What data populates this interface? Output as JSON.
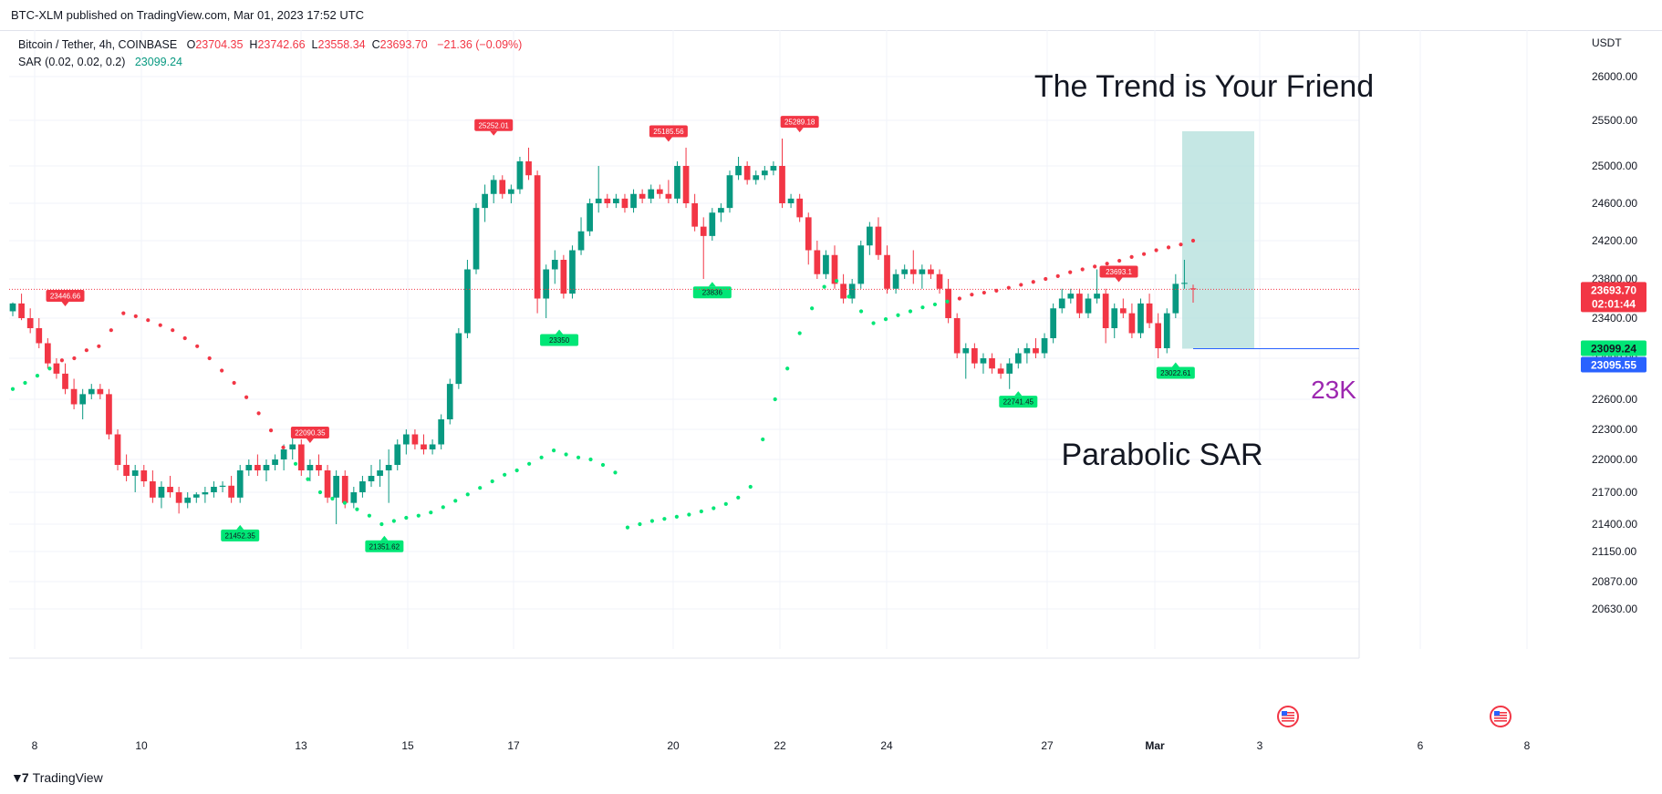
{
  "header": {
    "published": "BTC-XLM published on TradingView.com, Mar 01, 2023 17:52 UTC"
  },
  "legend": {
    "symbol": "Bitcoin / Tether, 4h, COINBASE",
    "o_label": "O",
    "o": "23704.35",
    "h_label": "H",
    "h": "23742.66",
    "l_label": "L",
    "l": "23558.34",
    "c_label": "C",
    "c": "23693.70",
    "change": "−21.36 (−0.09%)",
    "sar_label": "SAR (0.02, 0.02, 0.2)",
    "sar_value": "23099.24"
  },
  "currency": "USDT",
  "footer": {
    "brand": "TradingView"
  },
  "colors": {
    "up": "#089981",
    "down": "#f23645",
    "sar_up": "#00e676",
    "sar_down": "#f23645",
    "zone": "#b2dfdb",
    "level": "#2962ff",
    "label23k": "#9c27b0"
  },
  "chart_data": {
    "type": "candlestick",
    "symbol": "Bitcoin / Tether",
    "interval": "4h",
    "ylim": [
      20450,
      26300
    ],
    "y_ticks": [
      26000,
      25500,
      25000,
      24600,
      24200,
      23800,
      23400,
      23000,
      22600,
      22300,
      22000,
      21700,
      21400,
      21150,
      20870,
      20630
    ],
    "y_tick_labels": [
      "26000.00",
      "25500.00",
      "25000.00",
      "24600.00",
      "24200.00",
      "23800.00",
      "23400.00",
      "23000.00",
      "22600.00",
      "22300.00",
      "22000.00",
      "21700.00",
      "21400.00",
      "21150.00",
      "20870.00",
      "20630.00"
    ],
    "x_ticks": [
      {
        "label": "8",
        "day": 8
      },
      {
        "label": "10",
        "day": 10
      },
      {
        "label": "13",
        "day": 13
      },
      {
        "label": "15",
        "day": 15
      },
      {
        "label": "17",
        "day": 17
      },
      {
        "label": "20",
        "day": 20
      },
      {
        "label": "22",
        "day": 22
      },
      {
        "label": "24",
        "day": 24
      },
      {
        "label": "27",
        "day": 27
      },
      {
        "label": "Mar",
        "day": 29
      },
      {
        "label": "3",
        "day": 31
      },
      {
        "label": "6",
        "day": 34
      },
      {
        "label": "8",
        "day": 36
      }
    ],
    "candles": [
      [
        23470,
        23560,
        23420,
        23550
      ],
      [
        23550,
        23650,
        23380,
        23400
      ],
      [
        23400,
        23500,
        23250,
        23300
      ],
      [
        23300,
        23400,
        23100,
        23150
      ],
      [
        23150,
        23200,
        22900,
        22950
      ],
      [
        22950,
        23000,
        22800,
        22850
      ],
      [
        22850,
        22950,
        22650,
        22700
      ],
      [
        22700,
        22800,
        22500,
        22550
      ],
      [
        22550,
        22700,
        22400,
        22650
      ],
      [
        22650,
        22750,
        22600,
        22700
      ],
      [
        22700,
        22750,
        22600,
        22650
      ],
      [
        22650,
        22700,
        22200,
        22250
      ],
      [
        22250,
        22300,
        21900,
        21950
      ],
      [
        21950,
        22050,
        21800,
        21850
      ],
      [
        21850,
        21950,
        21700,
        21900
      ],
      [
        21900,
        21950,
        21750,
        21800
      ],
      [
        21800,
        21900,
        21600,
        21650
      ],
      [
        21650,
        21800,
        21550,
        21750
      ],
      [
        21750,
        21850,
        21650,
        21700
      ],
      [
        21700,
        21750,
        21500,
        21600
      ],
      [
        21600,
        21700,
        21550,
        21650
      ],
      [
        21650,
        21700,
        21600,
        21680
      ],
      [
        21680,
        21750,
        21600,
        21700
      ],
      [
        21700,
        21800,
        21650,
        21750
      ],
      [
        21750,
        21800,
        21700,
        21760
      ],
      [
        21760,
        21850,
        21600,
        21650
      ],
      [
        21650,
        21950,
        21600,
        21900
      ],
      [
        21900,
        22000,
        21850,
        21950
      ],
      [
        21950,
        22050,
        21850,
        21900
      ],
      [
        21900,
        22000,
        21800,
        21950
      ],
      [
        21950,
        22050,
        21900,
        22000
      ],
      [
        22000,
        22150,
        21900,
        22100
      ],
      [
        22100,
        22250,
        22000,
        22150
      ],
      [
        22150,
        22200,
        21850,
        21900
      ],
      [
        21900,
        22000,
        21800,
        21950
      ],
      [
        21950,
        22050,
        21850,
        21900
      ],
      [
        21900,
        21950,
        21600,
        21650
      ],
      [
        21650,
        21900,
        21400,
        21850
      ],
      [
        21850,
        21900,
        21550,
        21600
      ],
      [
        21600,
        21750,
        21550,
        21700
      ],
      [
        21700,
        21850,
        21650,
        21800
      ],
      [
        21800,
        21950,
        21750,
        21850
      ],
      [
        21850,
        22000,
        21750,
        21900
      ],
      [
        21900,
        22100,
        21600,
        21950
      ],
      [
        21950,
        22200,
        21900,
        22150
      ],
      [
        22150,
        22300,
        22050,
        22250
      ],
      [
        22250,
        22300,
        22100,
        22150
      ],
      [
        22150,
        22250,
        22050,
        22100
      ],
      [
        22100,
        22200,
        22050,
        22150
      ],
      [
        22150,
        22450,
        22100,
        22400
      ],
      [
        22400,
        22800,
        22350,
        22750
      ],
      [
        22750,
        23300,
        22700,
        23250
      ],
      [
        23250,
        24000,
        23200,
        23900
      ],
      [
        23900,
        24600,
        23850,
        24550
      ],
      [
        24550,
        24800,
        24400,
        24700
      ],
      [
        24700,
        24900,
        24600,
        24850
      ],
      [
        24850,
        24900,
        24650,
        24700
      ],
      [
        24700,
        24800,
        24600,
        24750
      ],
      [
        24750,
        25100,
        24700,
        25050
      ],
      [
        25050,
        25200,
        24850,
        24900
      ],
      [
        24900,
        24950,
        23450,
        23600
      ],
      [
        23600,
        23950,
        23400,
        23900
      ],
      [
        23900,
        24100,
        23750,
        24000
      ],
      [
        24000,
        24050,
        23600,
        23650
      ],
      [
        23650,
        24150,
        23600,
        24100
      ],
      [
        24100,
        24450,
        24050,
        24300
      ],
      [
        24300,
        24650,
        24250,
        24600
      ],
      [
        24600,
        25000,
        24500,
        24650
      ],
      [
        24650,
        24700,
        24550,
        24600
      ],
      [
        24600,
        24700,
        24550,
        24650
      ],
      [
        24650,
        24700,
        24500,
        24550
      ],
      [
        24550,
        24750,
        24500,
        24700
      ],
      [
        24700,
        24750,
        24600,
        24650
      ],
      [
        24650,
        24800,
        24600,
        24750
      ],
      [
        24750,
        24800,
        24650,
        24700
      ],
      [
        24700,
        24850,
        24600,
        24650
      ],
      [
        24650,
        25050,
        24600,
        25000
      ],
      [
        25000,
        25200,
        24550,
        24600
      ],
      [
        24600,
        24700,
        24300,
        24350
      ],
      [
        24350,
        24450,
        23800,
        24250
      ],
      [
        24250,
        24550,
        24200,
        24500
      ],
      [
        24500,
        24600,
        24400,
        24550
      ],
      [
        24550,
        24950,
        24500,
        24900
      ],
      [
        24900,
        25100,
        24850,
        25000
      ],
      [
        25000,
        25050,
        24800,
        24850
      ],
      [
        24850,
        24950,
        24800,
        24900
      ],
      [
        24900,
        25000,
        24850,
        24950
      ],
      [
        24950,
        25050,
        24900,
        25000
      ],
      [
        25000,
        25300,
        24550,
        24600
      ],
      [
        24600,
        24700,
        24550,
        24650
      ],
      [
        24650,
        24700,
        24400,
        24450
      ],
      [
        24450,
        24500,
        23950,
        24100
      ],
      [
        24100,
        24200,
        23800,
        23850
      ],
      [
        23850,
        24100,
        23800,
        24050
      ],
      [
        24050,
        24150,
        23700,
        23750
      ],
      [
        23750,
        23850,
        23550,
        23600
      ],
      [
        23600,
        23800,
        23550,
        23750
      ],
      [
        23750,
        24200,
        23700,
        24150
      ],
      [
        24150,
        24400,
        24050,
        24350
      ],
      [
        24350,
        24450,
        24000,
        24050
      ],
      [
        24050,
        24150,
        23650,
        23700
      ],
      [
        23700,
        23900,
        23650,
        23850
      ],
      [
        23850,
        23950,
        23800,
        23900
      ],
      [
        23900,
        24100,
        23750,
        23850
      ],
      [
        23850,
        23950,
        23700,
        23900
      ],
      [
        23900,
        23950,
        23800,
        23850
      ],
      [
        23850,
        23900,
        23650,
        23700
      ],
      [
        23700,
        23800,
        23350,
        23400
      ],
      [
        23400,
        23450,
        23000,
        23050
      ],
      [
        23050,
        23150,
        22800,
        23100
      ],
      [
        23100,
        23150,
        22900,
        22950
      ],
      [
        22950,
        23050,
        22850,
        23000
      ],
      [
        23000,
        23050,
        22850,
        22900
      ],
      [
        22900,
        22950,
        22800,
        22850
      ],
      [
        22850,
        23000,
        22700,
        22950
      ],
      [
        22950,
        23100,
        22900,
        23050
      ],
      [
        23050,
        23150,
        22950,
        23100
      ],
      [
        23100,
        23200,
        23000,
        23050
      ],
      [
        23050,
        23250,
        23000,
        23200
      ],
      [
        23200,
        23550,
        23150,
        23500
      ],
      [
        23500,
        23700,
        23450,
        23600
      ],
      [
        23600,
        23700,
        23550,
        23650
      ],
      [
        23650,
        23700,
        23400,
        23450
      ],
      [
        23450,
        23650,
        23400,
        23600
      ],
      [
        23600,
        23900,
        23550,
        23650
      ],
      [
        23650,
        23700,
        23150,
        23300
      ],
      [
        23300,
        23550,
        23200,
        23500
      ],
      [
        23500,
        23600,
        23400,
        23450
      ],
      [
        23450,
        23550,
        23200,
        23250
      ],
      [
        23250,
        23600,
        23200,
        23550
      ],
      [
        23550,
        23650,
        23300,
        23350
      ],
      [
        23350,
        23450,
        23000,
        23100
      ],
      [
        23100,
        23500,
        23050,
        23450
      ],
      [
        23450,
        23850,
        23400,
        23750
      ],
      [
        23750,
        24000,
        23700,
        23760
      ],
      [
        23704,
        23742,
        23558,
        23694
      ]
    ],
    "sar_dots": [
      [
        0,
        22700
      ],
      [
        2,
        22760
      ],
      [
        4,
        22830
      ],
      [
        6,
        22900
      ],
      [
        8,
        22980
      ],
      [
        10,
        23000
      ],
      [
        12,
        23080
      ],
      [
        14,
        23120
      ],
      [
        16,
        23280
      ],
      [
        18,
        23450
      ],
      [
        20,
        23420
      ],
      [
        22,
        23380
      ],
      [
        24,
        23330
      ],
      [
        26,
        23280
      ],
      [
        28,
        23200
      ],
      [
        30,
        23120
      ],
      [
        32,
        23000
      ],
      [
        34,
        22880
      ],
      [
        36,
        22760
      ],
      [
        38,
        22620
      ],
      [
        40,
        22460
      ],
      [
        42,
        22290
      ],
      [
        44,
        22120
      ],
      [
        46,
        21960
      ],
      [
        48,
        21820
      ],
      [
        50,
        21700
      ],
      [
        52,
        21640
      ],
      [
        54,
        21600
      ],
      [
        56,
        21540
      ],
      [
        58,
        21480
      ],
      [
        60,
        21400
      ],
      [
        62,
        21430
      ],
      [
        64,
        21460
      ],
      [
        66,
        21480
      ],
      [
        68,
        21510
      ],
      [
        70,
        21560
      ],
      [
        72,
        21620
      ],
      [
        74,
        21680
      ],
      [
        76,
        21740
      ],
      [
        78,
        21800
      ],
      [
        80,
        21860
      ],
      [
        82,
        21900
      ],
      [
        84,
        21960
      ],
      [
        86,
        22020
      ],
      [
        88,
        22090
      ],
      [
        90,
        22050
      ],
      [
        92,
        22020
      ],
      [
        94,
        22000
      ],
      [
        96,
        21950
      ],
      [
        98,
        21880
      ],
      [
        100,
        21370
      ],
      [
        102,
        21400
      ],
      [
        104,
        21430
      ],
      [
        106,
        21450
      ],
      [
        108,
        21470
      ],
      [
        110,
        21490
      ],
      [
        112,
        21520
      ],
      [
        114,
        21550
      ],
      [
        116,
        21590
      ],
      [
        118,
        21650
      ],
      [
        120,
        21750
      ],
      [
        122,
        22200
      ],
      [
        124,
        22600
      ],
      [
        126,
        22900
      ],
      [
        128,
        23250
      ],
      [
        130,
        23500
      ],
      [
        132,
        23720
      ],
      [
        134,
        23780
      ],
      [
        136,
        23620
      ],
      [
        138,
        23470
      ],
      [
        140,
        23350
      ],
      [
        142,
        23390
      ],
      [
        144,
        23430
      ],
      [
        146,
        23470
      ],
      [
        148,
        23510
      ],
      [
        150,
        23540
      ],
      [
        152,
        23570
      ],
      [
        154,
        23600
      ],
      [
        156,
        23640
      ],
      [
        158,
        23660
      ],
      [
        160,
        23680
      ],
      [
        162,
        23710
      ],
      [
        164,
        23740
      ],
      [
        166,
        23770
      ],
      [
        168,
        23800
      ],
      [
        170,
        23830
      ],
      [
        172,
        23870
      ],
      [
        174,
        23900
      ],
      [
        176,
        23930
      ],
      [
        178,
        23960
      ],
      [
        180,
        23990
      ],
      [
        182,
        24030
      ],
      [
        184,
        24060
      ],
      [
        186,
        24100
      ],
      [
        188,
        24130
      ],
      [
        190,
        24160
      ],
      [
        192,
        24200
      ]
    ],
    "sar_labels": [
      {
        "text": "23446.66",
        "price": 23446.66,
        "type": "high",
        "index": 12
      },
      {
        "text": "21452.35",
        "price": 21452.35,
        "type": "low",
        "index": 52
      },
      {
        "text": "22090.35",
        "price": 22090.35,
        "type": "high",
        "index": 68
      },
      {
        "text": "21351.62",
        "price": 21351.62,
        "type": "low",
        "index": 85
      },
      {
        "text": "25252.01",
        "price": 25252.01,
        "type": "high",
        "index": 110
      },
      {
        "text": "23350",
        "price": 23350,
        "type": "low",
        "index": 125
      },
      {
        "text": "25185.56",
        "price": 25185.56,
        "type": "high",
        "index": 150
      },
      {
        "text": "23836",
        "price": 23836,
        "type": "low",
        "index": 160
      },
      {
        "text": "25289.18",
        "price": 25289.18,
        "type": "high",
        "index": 180
      },
      {
        "text": "22741.45",
        "price": 22741.45,
        "type": "low",
        "index": 230
      },
      {
        "text": "23693.1",
        "price": 23693.1,
        "type": "high",
        "index": 253
      },
      {
        "text": "23022.61",
        "price": 23022.61,
        "type": "low",
        "index": 266
      }
    ],
    "price_labels": {
      "last": {
        "price": "23693.70",
        "countdown": "02:01:44"
      },
      "sar": "23099.24",
      "level": "23095.55"
    },
    "annotations": {
      "title": "The Trend is Your Friend",
      "sar_text": "Parabolic SAR",
      "level_text": "23K",
      "level_price": 23095.55,
      "zone_top": 25380
    }
  }
}
